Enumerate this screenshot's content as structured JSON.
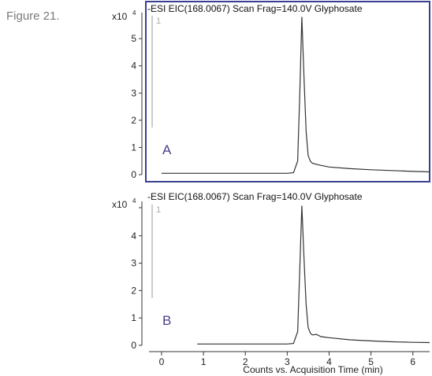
{
  "figure_caption": "Figure 21.",
  "chart_data": [
    {
      "type": "line",
      "panel_letter": "A",
      "title": "-ESI EIC(168.0067) Scan Frag=140.0V Glyphosate",
      "trace_label": "1",
      "y_multiplier_base": "x10",
      "y_multiplier_exp": "4",
      "xlim": [
        -0.3,
        6.4
      ],
      "ylim": [
        0,
        5.9
      ],
      "yticks": [
        0,
        1,
        2,
        3,
        4,
        5
      ],
      "ytick_labels": [
        "0",
        "1",
        "2",
        "3",
        "4",
        "5"
      ],
      "grid": false,
      "framed": true,
      "frame_color": "#3a3f8f",
      "series": [
        {
          "x": [
            0.0,
            0.6,
            0.9,
            1.5,
            2.0,
            2.5,
            3.0,
            3.15,
            3.25,
            3.3,
            3.35,
            3.4,
            3.45,
            3.5,
            3.55,
            3.6,
            3.7,
            3.8,
            4.0,
            4.5,
            5.0,
            5.5,
            6.0,
            6.4
          ],
          "y": [
            0.05,
            0.05,
            0.05,
            0.05,
            0.05,
            0.05,
            0.05,
            0.07,
            0.5,
            3.0,
            5.8,
            3.6,
            1.6,
            0.7,
            0.5,
            0.42,
            0.38,
            0.34,
            0.28,
            0.22,
            0.18,
            0.15,
            0.12,
            0.1
          ]
        }
      ]
    },
    {
      "type": "line",
      "panel_letter": "B",
      "title": "-ESI EIC(168.0067) Scan Frag=140.0V Glyphosate",
      "trace_label": "1",
      "y_multiplier_base": "x10",
      "y_multiplier_exp": "4",
      "xlim": [
        -0.3,
        6.4
      ],
      "ylim": [
        0,
        5.2
      ],
      "yticks": [
        0,
        1,
        2,
        3,
        4
      ],
      "ytick_labels": [
        "0",
        "1",
        "2",
        "3",
        "4"
      ],
      "xticks": [
        0,
        1,
        2,
        3,
        4,
        5,
        6
      ],
      "xtick_labels": [
        "0",
        "1",
        "2",
        "3",
        "4",
        "5",
        "6"
      ],
      "xlabel": "Counts vs. Acquisition Time (min)",
      "grid": false,
      "framed": false,
      "series": [
        {
          "x": [
            0.85,
            1.5,
            2.0,
            2.5,
            3.0,
            3.15,
            3.25,
            3.3,
            3.35,
            3.4,
            3.45,
            3.5,
            3.55,
            3.6,
            3.7,
            3.8,
            3.9,
            4.0,
            4.5,
            5.0,
            5.5,
            6.0,
            6.4
          ],
          "y": [
            0.05,
            0.05,
            0.05,
            0.05,
            0.05,
            0.07,
            0.5,
            2.8,
            5.1,
            3.2,
            1.5,
            0.65,
            0.45,
            0.38,
            0.4,
            0.32,
            0.3,
            0.28,
            0.2,
            0.16,
            0.13,
            0.11,
            0.1
          ]
        }
      ]
    }
  ]
}
